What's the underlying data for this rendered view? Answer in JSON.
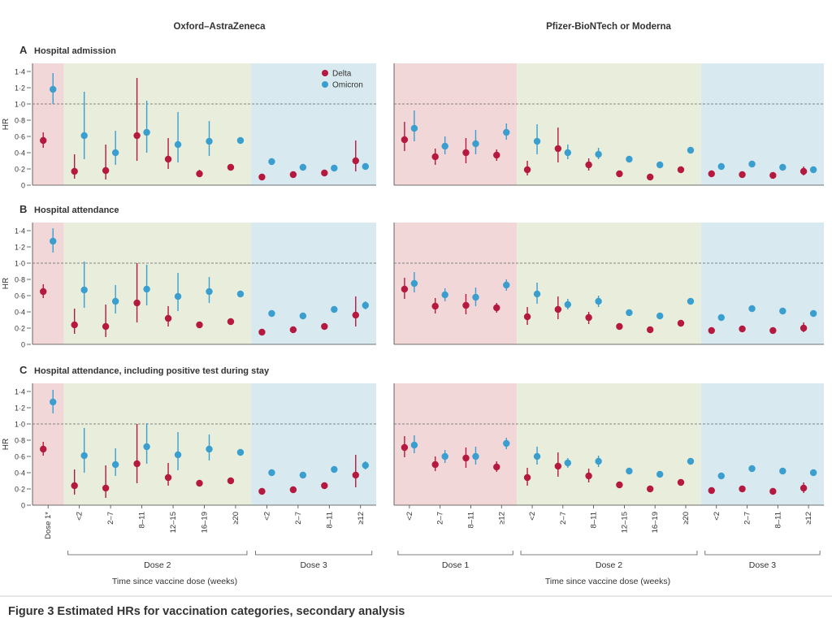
{
  "figure": {
    "caption": "Figure 3 Estimated HRs for vaccination categories, secondary analysis",
    "ylabel": "HR",
    "xlabel": "Time since vaccine dose (weeks)",
    "reference_line": 1.0,
    "yticks": [
      "0",
      "0·2",
      "0·4",
      "0·6",
      "0·8",
      "1·0",
      "1·2",
      "1·4"
    ],
    "legend": [
      {
        "name": "Delta",
        "color": "#b5193f"
      },
      {
        "name": "Omicron",
        "color": "#3a9ecf"
      }
    ],
    "columns": [
      {
        "title": "Oxford–AstraZeneca",
        "categories": [
          "Dose 1*",
          "<2",
          "2–7",
          "8–11",
          "12–15",
          "16–19",
          "≥20",
          "<2",
          "2–7",
          "8–11",
          "≥12"
        ],
        "groups": [
          {
            "label": "Dose 2",
            "from": 1,
            "to": 6
          },
          {
            "label": "Dose 3",
            "from": 7,
            "to": 10
          }
        ],
        "bands": [
          {
            "from": 0,
            "to": 0,
            "color": "#f2d7d8"
          },
          {
            "from": 1,
            "to": 6,
            "color": "#e8eedb"
          },
          {
            "from": 7,
            "to": 10,
            "color": "#d8e9f0"
          }
        ]
      },
      {
        "title": "Pfizer-BioNTech or Moderna",
        "categories": [
          "<2",
          "2–7",
          "8–11",
          "≥12",
          "<2",
          "2–7",
          "8–11",
          "12–15",
          "16–19",
          "≥20",
          "<2",
          "2–7",
          "8–11",
          "≥12"
        ],
        "groups": [
          {
            "label": "Dose 1",
            "from": 0,
            "to": 3
          },
          {
            "label": "Dose 2",
            "from": 4,
            "to": 9
          },
          {
            "label": "Dose 3",
            "from": 10,
            "to": 13
          }
        ],
        "bands": [
          {
            "from": 0,
            "to": 3,
            "color": "#f2d7d8"
          },
          {
            "from": 4,
            "to": 9,
            "color": "#e8eedb"
          },
          {
            "from": 10,
            "to": 13,
            "color": "#d8e9f0"
          }
        ]
      }
    ]
  },
  "chart_data": [
    {
      "type": "scatter",
      "panel": "A",
      "title": "Hospital admission",
      "ylim": [
        0,
        1.5
      ],
      "series": [
        {
          "name": "Delta",
          "az": [
            [
              0.55,
              0.46,
              0.65
            ],
            [
              0.17,
              0.08,
              0.38
            ],
            [
              0.18,
              0.07,
              0.5
            ],
            [
              0.61,
              0.3,
              1.32
            ],
            [
              0.32,
              0.2,
              0.58
            ],
            [
              0.14,
              0.1,
              0.19
            ],
            [
              0.22,
              0.19,
              0.25
            ],
            [
              0.1,
              0.08,
              0.12
            ],
            [
              0.13,
              0.11,
              0.16
            ],
            [
              0.15,
              0.13,
              0.17
            ],
            [
              0.3,
              0.17,
              0.55
            ]
          ],
          "pf": [
            [
              0.56,
              0.42,
              0.78
            ],
            [
              0.35,
              0.25,
              0.45
            ],
            [
              0.4,
              0.27,
              0.58
            ],
            [
              0.37,
              0.3,
              0.44
            ],
            [
              0.19,
              0.12,
              0.3
            ],
            [
              0.45,
              0.28,
              0.71
            ],
            [
              0.25,
              0.18,
              0.33
            ],
            [
              0.14,
              0.12,
              0.17
            ],
            [
              0.1,
              0.08,
              0.12
            ],
            [
              0.19,
              0.17,
              0.22
            ],
            [
              0.14,
              0.12,
              0.16
            ],
            [
              0.13,
              0.11,
              0.15
            ],
            [
              0.12,
              0.1,
              0.14
            ],
            [
              0.17,
              0.12,
              0.23
            ]
          ]
        },
        {
          "name": "Omicron",
          "az": [
            [
              1.18,
              1.0,
              1.38
            ],
            [
              0.61,
              0.32,
              1.15
            ],
            [
              0.4,
              0.25,
              0.67
            ],
            [
              0.65,
              0.4,
              1.04
            ],
            [
              0.5,
              0.28,
              0.9
            ],
            [
              0.54,
              0.36,
              0.79
            ],
            [
              0.55,
              0.52,
              0.58
            ],
            [
              0.29,
              0.26,
              0.32
            ],
            [
              0.22,
              0.2,
              0.24
            ],
            [
              0.21,
              0.19,
              0.23
            ],
            [
              0.23,
              0.2,
              0.26
            ]
          ],
          "pf": [
            [
              0.7,
              0.54,
              0.92
            ],
            [
              0.48,
              0.38,
              0.6
            ],
            [
              0.51,
              0.38,
              0.68
            ],
            [
              0.65,
              0.56,
              0.76
            ],
            [
              0.54,
              0.38,
              0.75
            ],
            [
              0.4,
              0.32,
              0.5
            ],
            [
              0.38,
              0.32,
              0.46
            ],
            [
              0.32,
              0.29,
              0.35
            ],
            [
              0.25,
              0.23,
              0.27
            ],
            [
              0.43,
              0.4,
              0.46
            ],
            [
              0.23,
              0.21,
              0.25
            ],
            [
              0.26,
              0.24,
              0.28
            ],
            [
              0.22,
              0.2,
              0.24
            ],
            [
              0.19,
              0.17,
              0.21
            ]
          ]
        }
      ]
    },
    {
      "type": "scatter",
      "panel": "B",
      "title": "Hospital attendance",
      "ylim": [
        0,
        1.5
      ],
      "series": [
        {
          "name": "Delta",
          "az": [
            [
              0.65,
              0.57,
              0.74
            ],
            [
              0.24,
              0.13,
              0.44
            ],
            [
              0.22,
              0.09,
              0.49
            ],
            [
              0.51,
              0.27,
              1.0
            ],
            [
              0.32,
              0.22,
              0.47
            ],
            [
              0.24,
              0.2,
              0.28
            ],
            [
              0.28,
              0.25,
              0.31
            ],
            [
              0.15,
              0.13,
              0.17
            ],
            [
              0.18,
              0.16,
              0.2
            ],
            [
              0.22,
              0.2,
              0.24
            ],
            [
              0.36,
              0.22,
              0.59
            ]
          ],
          "pf": [
            [
              0.68,
              0.56,
              0.82
            ],
            [
              0.47,
              0.38,
              0.57
            ],
            [
              0.48,
              0.37,
              0.62
            ],
            [
              0.45,
              0.39,
              0.51
            ],
            [
              0.34,
              0.24,
              0.46
            ],
            [
              0.43,
              0.31,
              0.59
            ],
            [
              0.33,
              0.25,
              0.4
            ],
            [
              0.22,
              0.2,
              0.25
            ],
            [
              0.18,
              0.16,
              0.2
            ],
            [
              0.26,
              0.24,
              0.28
            ],
            [
              0.17,
              0.15,
              0.19
            ],
            [
              0.19,
              0.17,
              0.21
            ],
            [
              0.17,
              0.15,
              0.19
            ],
            [
              0.2,
              0.15,
              0.27
            ]
          ]
        },
        {
          "name": "Omicron",
          "az": [
            [
              1.27,
              1.13,
              1.43
            ],
            [
              0.67,
              0.45,
              1.02
            ],
            [
              0.53,
              0.38,
              0.73
            ],
            [
              0.68,
              0.48,
              0.98
            ],
            [
              0.59,
              0.41,
              0.88
            ],
            [
              0.65,
              0.51,
              0.83
            ],
            [
              0.62,
              0.59,
              0.65
            ],
            [
              0.38,
              0.35,
              0.41
            ],
            [
              0.35,
              0.33,
              0.37
            ],
            [
              0.43,
              0.41,
              0.45
            ],
            [
              0.48,
              0.43,
              0.53
            ]
          ],
          "pf": [
            [
              0.75,
              0.64,
              0.89
            ],
            [
              0.61,
              0.53,
              0.69
            ],
            [
              0.58,
              0.47,
              0.7
            ],
            [
              0.73,
              0.66,
              0.8
            ],
            [
              0.62,
              0.5,
              0.76
            ],
            [
              0.49,
              0.43,
              0.56
            ],
            [
              0.53,
              0.46,
              0.6
            ],
            [
              0.39,
              0.37,
              0.41
            ],
            [
              0.35,
              0.33,
              0.37
            ],
            [
              0.53,
              0.51,
              0.55
            ],
            [
              0.33,
              0.31,
              0.35
            ],
            [
              0.44,
              0.42,
              0.46
            ],
            [
              0.41,
              0.39,
              0.43
            ],
            [
              0.38,
              0.36,
              0.4
            ]
          ]
        }
      ]
    },
    {
      "type": "scatter",
      "panel": "C",
      "title": "Hospital attendance, including positive test during stay",
      "ylim": [
        0,
        1.5
      ],
      "series": [
        {
          "name": "Delta",
          "az": [
            [
              0.69,
              0.61,
              0.78
            ],
            [
              0.24,
              0.13,
              0.44
            ],
            [
              0.21,
              0.09,
              0.49
            ],
            [
              0.51,
              0.27,
              1.0
            ],
            [
              0.34,
              0.24,
              0.52
            ],
            [
              0.27,
              0.23,
              0.31
            ],
            [
              0.3,
              0.27,
              0.33
            ],
            [
              0.17,
              0.15,
              0.19
            ],
            [
              0.19,
              0.17,
              0.21
            ],
            [
              0.24,
              0.22,
              0.26
            ],
            [
              0.37,
              0.22,
              0.62
            ]
          ],
          "pf": [
            [
              0.71,
              0.59,
              0.85
            ],
            [
              0.5,
              0.42,
              0.6
            ],
            [
              0.58,
              0.46,
              0.71
            ],
            [
              0.47,
              0.41,
              0.54
            ],
            [
              0.34,
              0.24,
              0.46
            ],
            [
              0.48,
              0.35,
              0.65
            ],
            [
              0.36,
              0.28,
              0.45
            ],
            [
              0.25,
              0.23,
              0.27
            ],
            [
              0.2,
              0.18,
              0.22
            ],
            [
              0.28,
              0.26,
              0.3
            ],
            [
              0.18,
              0.16,
              0.2
            ],
            [
              0.2,
              0.18,
              0.22
            ],
            [
              0.17,
              0.15,
              0.19
            ],
            [
              0.21,
              0.15,
              0.28
            ]
          ]
        },
        {
          "name": "Omicron",
          "az": [
            [
              1.27,
              1.13,
              1.42
            ],
            [
              0.61,
              0.4,
              0.95
            ],
            [
              0.5,
              0.36,
              0.7
            ],
            [
              0.72,
              0.51,
              1.01
            ],
            [
              0.62,
              0.43,
              0.9
            ],
            [
              0.69,
              0.55,
              0.87
            ],
            [
              0.65,
              0.62,
              0.68
            ],
            [
              0.4,
              0.37,
              0.43
            ],
            [
              0.37,
              0.35,
              0.39
            ],
            [
              0.44,
              0.42,
              0.46
            ],
            [
              0.49,
              0.44,
              0.54
            ]
          ],
          "pf": [
            [
              0.74,
              0.64,
              0.86
            ],
            [
              0.6,
              0.52,
              0.68
            ],
            [
              0.6,
              0.5,
              0.72
            ],
            [
              0.76,
              0.69,
              0.83
            ],
            [
              0.6,
              0.5,
              0.72
            ],
            [
              0.52,
              0.46,
              0.58
            ],
            [
              0.54,
              0.47,
              0.61
            ],
            [
              0.42,
              0.4,
              0.44
            ],
            [
              0.38,
              0.36,
              0.4
            ],
            [
              0.54,
              0.52,
              0.56
            ],
            [
              0.36,
              0.34,
              0.38
            ],
            [
              0.45,
              0.43,
              0.47
            ],
            [
              0.42,
              0.4,
              0.44
            ],
            [
              0.4,
              0.38,
              0.42
            ]
          ]
        }
      ]
    }
  ]
}
